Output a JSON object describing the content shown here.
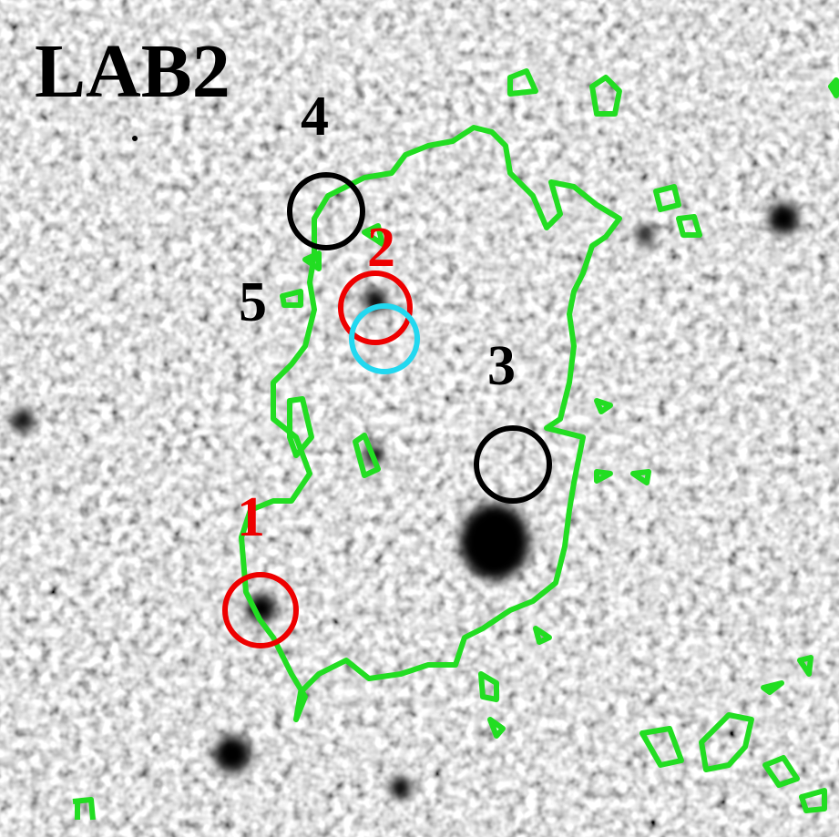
{
  "title": "LAB2",
  "markers": [
    {
      "label": "1"
    },
    {
      "label": "2"
    },
    {
      "label": "3"
    },
    {
      "label": "4"
    },
    {
      "label": "5"
    }
  ]
}
